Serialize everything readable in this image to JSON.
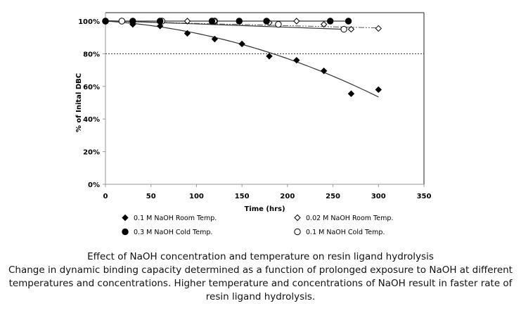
{
  "chart_data": {
    "type": "scatter",
    "xlabel": "Time (hrs)",
    "ylabel": "% of Inital DBC",
    "xlim": [
      0,
      350
    ],
    "ylim": [
      0,
      100
    ],
    "xticks": [
      0,
      50,
      100,
      150,
      200,
      250,
      300,
      350
    ],
    "yticks": [
      "0%",
      "20%",
      "40%",
      "60%",
      "80%",
      "100%"
    ],
    "yticks_values": [
      0,
      20,
      40,
      60,
      80,
      100
    ],
    "reference_line": {
      "y": 80,
      "style": "dotted"
    },
    "grid": false,
    "legend_placement": "bottom",
    "series": [
      {
        "name": "0.1 M NaOH Room Temp.",
        "marker": "filled-diamond",
        "trend": "curve",
        "x": [
          0,
          30,
          60,
          90,
          120,
          150,
          180,
          210,
          240,
          270,
          300
        ],
        "y": [
          100,
          98,
          97,
          92.5,
          89,
          86,
          78.5,
          76,
          69.5,
          55.5,
          58
        ]
      },
      {
        "name": "0.02 M NaOH Room Temp.",
        "marker": "open-diamond",
        "trend": "dash-dot",
        "x": [
          0,
          60,
          90,
          120,
          180,
          210,
          240,
          270,
          300
        ],
        "y": [
          100,
          100,
          100,
          100,
          99,
          100,
          98,
          95,
          95.5
        ]
      },
      {
        "name": "0.3 M NaOH Cold Temp.",
        "marker": "filled-circle",
        "trend": "solid",
        "x": [
          0,
          30,
          60,
          117,
          147,
          177,
          247,
          267
        ],
        "y": [
          100,
          100,
          100,
          100,
          100,
          100,
          100,
          100
        ]
      },
      {
        "name": "0.1 M NaOH Cold Temp.",
        "marker": "open-circle",
        "trend": "solid",
        "x": [
          0,
          18,
          62,
          120,
          190,
          262
        ],
        "y": [
          100,
          100,
          100,
          100,
          98,
          95
        ]
      }
    ],
    "colors": {
      "marker": "#000000",
      "trend": "#333333"
    }
  },
  "caption": {
    "title": "Effect of NaOH concentration and temperature on resin ligand hydrolysis",
    "body": "Change in dynamic binding capacity determined as a function of prolonged exposure to NaOH at different temperatures and concentrations.  Higher temperature and concentrations of NaOH result in faster rate of resin ligand hydrolysis."
  }
}
